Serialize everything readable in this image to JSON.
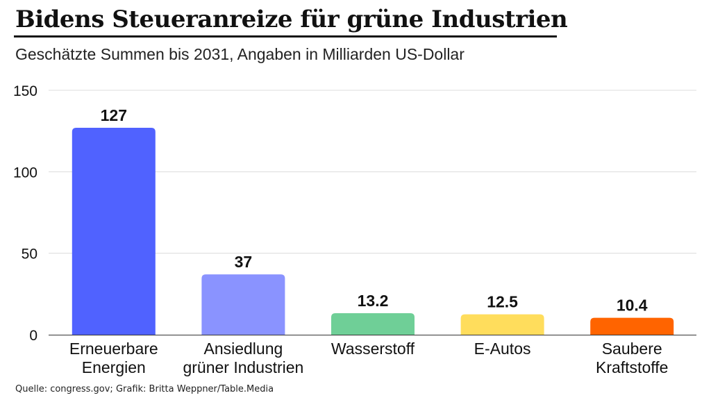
{
  "header": {
    "title": "Bidens Steueranreize für grüne Industrien",
    "subtitle": "Geschätzte Summen bis 2031, Angaben in Milliarden US-Dollar"
  },
  "footer": {
    "source": "Quelle: congress.gov; Grafik: Britta Weppner/Table.Media"
  },
  "chart_data": {
    "type": "bar",
    "title": "Bidens Steueranreize für grüne Industrien",
    "subtitle": "Geschätzte Summen bis 2031, Angaben in Milliarden US-Dollar",
    "xlabel": "",
    "ylabel": "",
    "ylim": [
      0,
      150
    ],
    "yticks": [
      0,
      50,
      100,
      150
    ],
    "grid": true,
    "categories": [
      [
        "Erneuerbare",
        "Energien"
      ],
      [
        "Ansiedlung",
        "grüner Industrien"
      ],
      [
        "Wasserstoff"
      ],
      [
        "E-Autos"
      ],
      [
        "Saubere",
        "Kraftstoffe"
      ]
    ],
    "values": [
      127,
      37,
      13.2,
      12.5,
      10.4
    ],
    "value_labels": [
      "127",
      "37",
      "13.2",
      "12.5",
      "10.4"
    ],
    "colors": [
      "#5062ff",
      "#8a93ff",
      "#6fcf97",
      "#ffdd5c",
      "#ff6400"
    ]
  }
}
